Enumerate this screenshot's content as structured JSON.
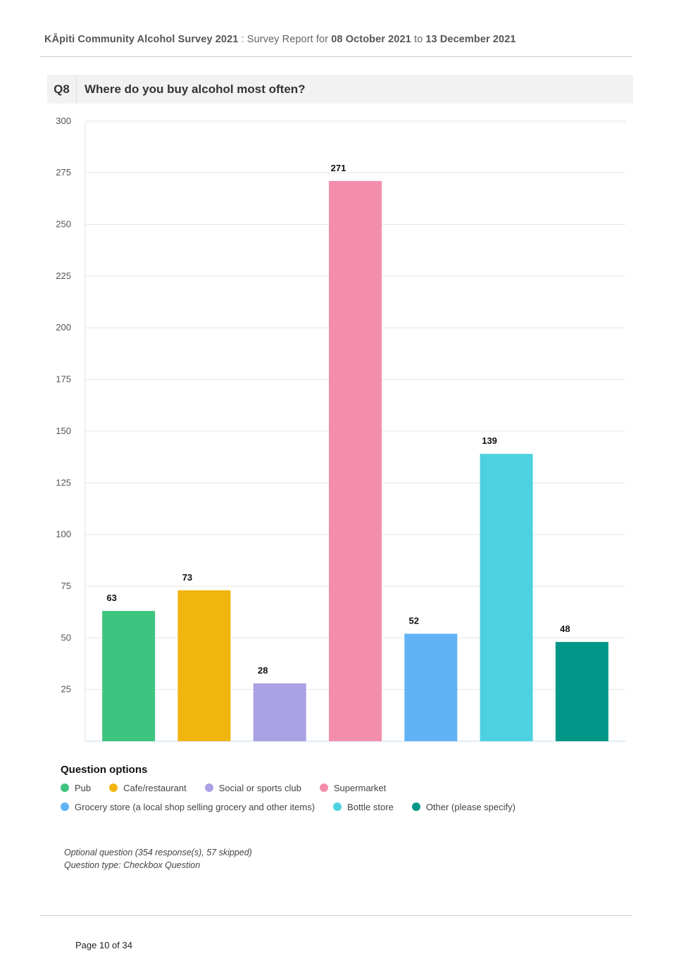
{
  "header": {
    "title": "KĀpiti Community Alcohol Survey 2021",
    "sep": " : ",
    "report_label": "Survey Report for ",
    "date_from": "08 October 2021",
    "to_label": " to ",
    "date_to": "13 December 2021"
  },
  "question": {
    "number": "Q8",
    "text": "Where do you buy alcohol most often?"
  },
  "chart_data": {
    "type": "bar",
    "categories": [
      "Pub",
      "Cafe/restaurant",
      "Social or sports club",
      "Supermarket",
      "Grocery store (a local shop selling grocery and other items)",
      "Bottle store",
      "Other (please specify)"
    ],
    "values": [
      63,
      73,
      28,
      271,
      52,
      139,
      48
    ],
    "colors": [
      "#3ec47e",
      "#f2b50f",
      "#aaa1e4",
      "#f38dac",
      "#62b3f5",
      "#4dd1e0",
      "#009688"
    ],
    "y_ticks": [
      25,
      50,
      75,
      100,
      125,
      150,
      175,
      200,
      225,
      250,
      275,
      300
    ],
    "ylim": [
      0,
      300
    ],
    "grid": true,
    "data_labels": true,
    "legend_title": "Question options",
    "legend_position": "bottom"
  },
  "notes": {
    "line1": "Optional question (354 response(s), 57 skipped)",
    "line2": "Question type: Checkbox Question"
  },
  "footer": {
    "page": "Page 10 of 34"
  }
}
